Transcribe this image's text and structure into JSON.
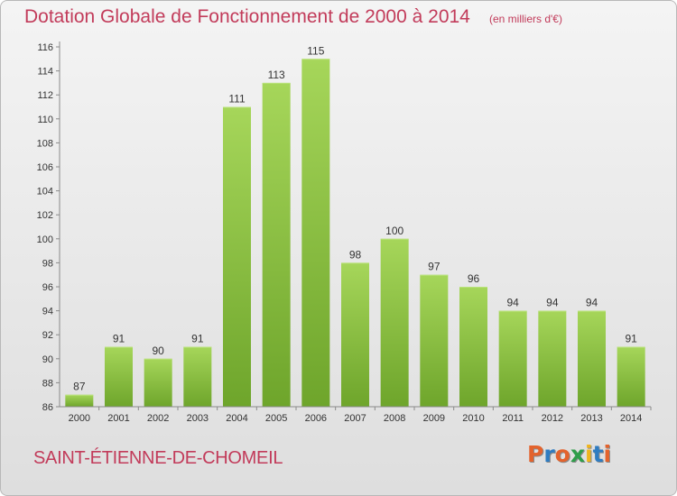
{
  "header": {
    "title": "Dotation Globale de Fonctionnement de 2000 à 2014",
    "unit_note": "(en milliers d'€)"
  },
  "footer": {
    "town": "SAINT-ÉTIENNE-DE-CHOMEIL",
    "logo_text": "Proxiti",
    "logo_letter_colors": [
      "#e3632d",
      "#2f7cc1",
      "#e3632d",
      "#2f9e4a",
      "#f0b51e",
      "#2f7cc1",
      "#e3632d"
    ]
  },
  "colors": {
    "title": "#c23b5a",
    "bar_light": "#a6d65a",
    "bar_dark": "#6ea52b",
    "axis": "#8a8a8a",
    "text": "#333333"
  },
  "chart_data": {
    "type": "bar",
    "title": "Dotation Globale de Fonctionnement de 2000 à 2014",
    "subtitle": "(en milliers d'€)",
    "xlabel": "",
    "ylabel": "",
    "categories": [
      "2000",
      "2001",
      "2002",
      "2003",
      "2004",
      "2005",
      "2006",
      "2007",
      "2008",
      "2009",
      "2010",
      "2011",
      "2012",
      "2013",
      "2014"
    ],
    "values": [
      87,
      91,
      90,
      91,
      111,
      113,
      115,
      98,
      100,
      97,
      96,
      94,
      94,
      94,
      91
    ],
    "ylim": [
      86,
      116
    ],
    "yticks": [
      86,
      88,
      90,
      92,
      94,
      96,
      98,
      100,
      102,
      104,
      106,
      108,
      110,
      112,
      114,
      116
    ],
    "grid": false,
    "data_labels": true
  }
}
